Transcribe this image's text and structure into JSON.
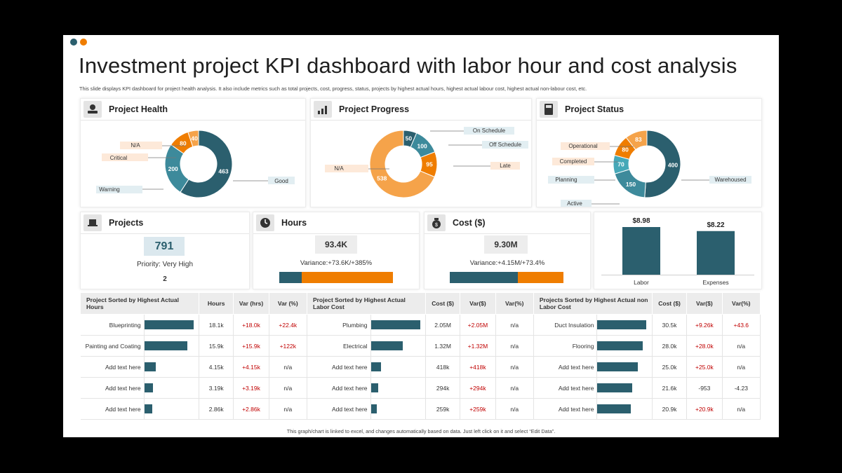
{
  "title": "Investment project KPI dashboard with labor hour and cost analysis",
  "subtitle": "This slide displays KPI dashboard for project health analysis. It also include metrics such as total projects, cost, progress, status, projects by highest actual hours, highest actual labour cost, highest actual non-labour cost, etc.",
  "footer": "This graph/chart is linked to excel, and changes automatically based on data. Just left click on it and select “Edit Data”.",
  "colors": {
    "teal": "#2b5f6e",
    "teal_light": "#3d8a9b",
    "orange": "#ef7d00",
    "orange_light": "#f5a34a",
    "var_red": "#c00000"
  },
  "cards": {
    "health": {
      "title": "Project Health",
      "icon": "hand-money-icon"
    },
    "progress": {
      "title": "Project Progress",
      "icon": "bar-chart-icon"
    },
    "status": {
      "title": "Project Status",
      "icon": "calculator-icon"
    },
    "projects": {
      "title": "Projects",
      "icon": "laptop-icon",
      "value": "791",
      "priority": "Priority: Very High",
      "count": "2"
    },
    "hours": {
      "title": "Hours",
      "icon": "clock-icon",
      "value": "93.4K",
      "variance": "Variance:+73.6K/+385%",
      "split": 0.2
    },
    "cost": {
      "title": "Cost ($)",
      "icon": "money-bag-icon",
      "value": "9.30M",
      "variance": "Variance:+4.15M/+73.4%",
      "split": 0.6
    }
  },
  "tables": {
    "hours": {
      "headers": [
        "Project Sorted by Highest Actual Hours",
        "Hours",
        "Var (hrs)",
        "Var (%)"
      ],
      "rows": [
        {
          "name": "Blueprinting",
          "value": "18.1k",
          "var": "+18.0k",
          "pct": "+22.4k",
          "bar": 18.1
        },
        {
          "name": "Painting and Coating",
          "value": "15.9k",
          "var": "+15.9k",
          "pct": "+122k",
          "bar": 15.9
        },
        {
          "name": "Add text here",
          "value": "4.15k",
          "var": "+4.15k",
          "pct": "n/a",
          "bar": 4.15
        },
        {
          "name": "Add text here",
          "value": "3.19k",
          "var": "+3.19k",
          "pct": "n/a",
          "bar": 3.19
        },
        {
          "name": "Add text here",
          "value": "2.86k",
          "var": "+2.86k",
          "pct": "n/a",
          "bar": 2.86
        }
      ]
    },
    "labor": {
      "headers": [
        "Project Sorted by Highest Actual Labor Cost",
        "Cost ($)",
        "Var($)",
        "Var(%)"
      ],
      "rows": [
        {
          "name": "Plumbing",
          "value": "2.05M",
          "var": "+2.05M",
          "pct": "n/a",
          "bar": 2050
        },
        {
          "name": "Electrical",
          "value": "1.32M",
          "var": "+1.32M",
          "pct": "n/a",
          "bar": 1320
        },
        {
          "name": "Add text here",
          "value": "418k",
          "var": "+418k",
          "pct": "n/a",
          "bar": 418
        },
        {
          "name": "Add text here",
          "value": "294k",
          "var": "+294k",
          "pct": "n/a",
          "bar": 294
        },
        {
          "name": "Add text here",
          "value": "259k",
          "var": "+259k",
          "pct": "n/a",
          "bar": 259
        }
      ]
    },
    "nonlabor": {
      "headers": [
        "Projects Sorted by Highest Actual non Labor Cost",
        "Cost ($)",
        "Var($)",
        "Var(%)"
      ],
      "rows": [
        {
          "name": "Duct Insulation",
          "value": "30.5k",
          "var": "+9.26k",
          "pct": "+43.6",
          "bar": 30.5
        },
        {
          "name": "Flooring",
          "value": "28.0k",
          "var": "+28.0k",
          "pct": "n/a",
          "bar": 28.0
        },
        {
          "name": "Add text here",
          "value": "25.0k",
          "var": "+25.0k",
          "pct": "n/a",
          "bar": 25.0
        },
        {
          "name": "Add text here",
          "value": "21.6k",
          "var": "-953",
          "pct": "-4.23",
          "bar": 21.6
        },
        {
          "name": "Add text here",
          "value": "20.9k",
          "var": "+20.9k",
          "pct": "n/a",
          "bar": 20.9
        }
      ]
    }
  },
  "chart_data": [
    {
      "id": "health",
      "type": "pie",
      "donut": true,
      "slices": [
        {
          "label": "Good",
          "value": 463,
          "color": "#2b5f6e"
        },
        {
          "label": "Warning",
          "value": 200,
          "color": "#3d8a9b"
        },
        {
          "label": "Critical",
          "value": 80,
          "color": "#ef7d00"
        },
        {
          "label": "N/A",
          "value": 40,
          "color": "#f5a34a"
        }
      ]
    },
    {
      "id": "progress",
      "type": "pie",
      "donut": true,
      "slices": [
        {
          "label": "On Schedule",
          "value": 50,
          "color": "#2b5f6e"
        },
        {
          "label": "Off Schedule",
          "value": 100,
          "color": "#3d8a9b"
        },
        {
          "label": "Late",
          "value": 95,
          "color": "#ef7d00"
        },
        {
          "label": "N/A",
          "value": 538,
          "color": "#f5a34a"
        }
      ]
    },
    {
      "id": "status",
      "type": "pie",
      "donut": true,
      "slices": [
        {
          "label": "Warehoused",
          "value": 400,
          "color": "#2b5f6e"
        },
        {
          "label": "Active",
          "value": 150,
          "color": "#3d8a9b"
        },
        {
          "label": "Planning",
          "value": 70,
          "color": "#46a8b8"
        },
        {
          "label": "Completed",
          "value": 80,
          "color": "#ef7d00"
        },
        {
          "label": "Operational",
          "value": 83,
          "color": "#f5a34a"
        }
      ]
    },
    {
      "id": "labor_expenses",
      "type": "bar",
      "categories": [
        "Labor",
        "Expenses"
      ],
      "values": [
        8.98,
        8.22
      ],
      "value_labels": [
        "$8.98",
        "$8.22"
      ],
      "color": "#2b5f6e"
    }
  ]
}
